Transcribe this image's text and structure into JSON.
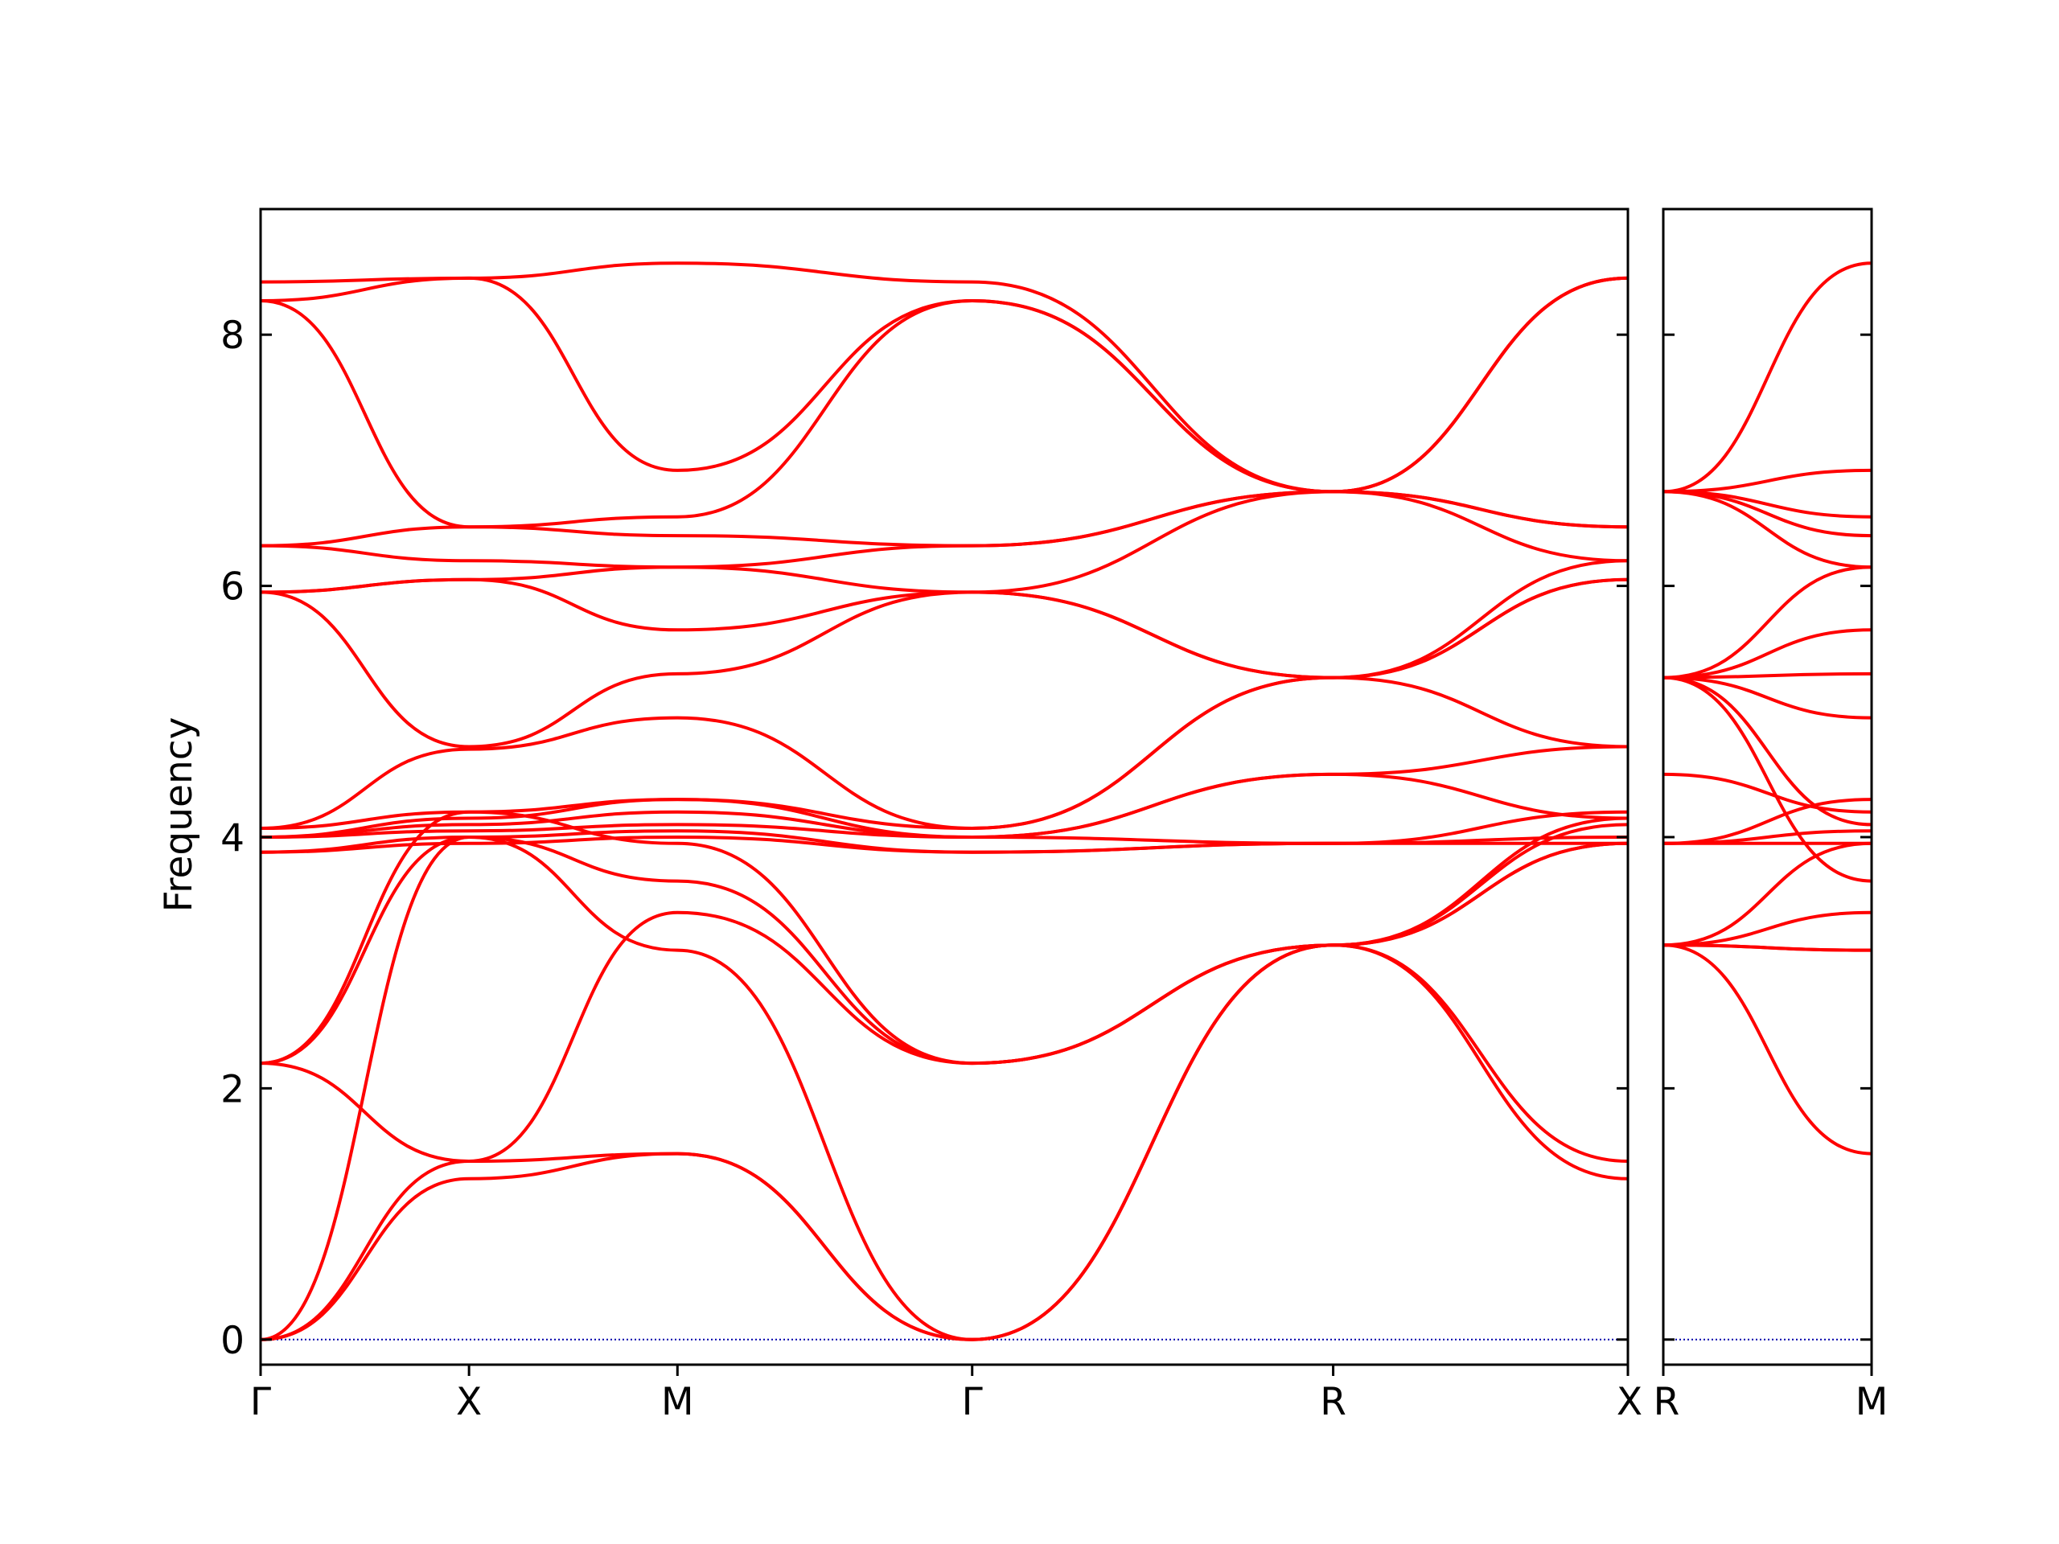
{
  "chart_data": {
    "type": "line",
    "ylabel": "Frequency",
    "ylim": [
      -0.2,
      9.0
    ],
    "yticks": [
      0,
      2,
      4,
      6,
      8
    ],
    "line_color": "#ff0000",
    "zero_line_color": "#0000aa",
    "panels": [
      {
        "segments": [
          {
            "from": "Γ",
            "to": "X",
            "length": 1.0
          },
          {
            "from": "X",
            "to": "M",
            "length": 1.0
          },
          {
            "from": "M",
            "to": "Γ",
            "length": 1.414
          },
          {
            "from": "Γ",
            "to": "R",
            "length": 1.732
          },
          {
            "from": "R",
            "to": "X",
            "length": 1.414
          }
        ],
        "xtick_labels": [
          "Γ",
          "X",
          "M",
          "Γ",
          "R",
          "X"
        ],
        "bands": [
          [
            [
              0,
              0
            ],
            [
              1,
              1.28
            ],
            [
              2,
              1.48
            ],
            [
              3.414,
              0
            ],
            [
              5.146,
              3.14
            ],
            [
              6.56,
              1.28
            ]
          ],
          [
            [
              0,
              0
            ],
            [
              1,
              1.42
            ],
            [
              2,
              1.48
            ],
            [
              3.414,
              0
            ],
            [
              5.146,
              3.14
            ],
            [
              6.56,
              1.42
            ]
          ],
          [
            [
              0,
              0
            ],
            [
              1,
              4.0
            ],
            [
              2,
              3.1
            ],
            [
              3.414,
              0
            ],
            [
              5.146,
              3.14
            ],
            [
              6.56,
              3.95
            ]
          ],
          [
            [
              0,
              2.2
            ],
            [
              1,
              1.42
            ],
            [
              2,
              3.4
            ],
            [
              3.414,
              2.2
            ],
            [
              5.146,
              3.14
            ],
            [
              6.56,
              3.95
            ]
          ],
          [
            [
              0,
              2.2
            ],
            [
              1,
              4.2
            ],
            [
              2,
              3.95
            ],
            [
              3.414,
              2.2
            ],
            [
              5.146,
              3.14
            ],
            [
              6.56,
              4.1
            ]
          ],
          [
            [
              0,
              2.2
            ],
            [
              1,
              4.0
            ],
            [
              2,
              3.65
            ],
            [
              3.414,
              2.2
            ],
            [
              5.146,
              3.14
            ],
            [
              6.56,
              4.15
            ]
          ],
          [
            [
              0,
              3.88
            ],
            [
              1,
              3.95
            ],
            [
              2,
              4.0
            ],
            [
              3.414,
              3.88
            ],
            [
              5.146,
              3.95
            ],
            [
              6.56,
              3.95
            ]
          ],
          [
            [
              0,
              3.88
            ],
            [
              1,
              4.0
            ],
            [
              2,
              4.05
            ],
            [
              3.414,
              3.88
            ],
            [
              5.146,
              3.95
            ],
            [
              6.56,
              4.0
            ]
          ],
          [
            [
              0,
              4.0
            ],
            [
              1,
              4.05
            ],
            [
              2,
              4.1
            ],
            [
              3.414,
              4.0
            ],
            [
              5.146,
              4.5
            ],
            [
              6.56,
              4.15
            ]
          ],
          [
            [
              0,
              4.0
            ],
            [
              1,
              4.1
            ],
            [
              2,
              4.2
            ],
            [
              3.414,
              4.0
            ],
            [
              5.146,
              3.95
            ],
            [
              6.56,
              4.2
            ]
          ],
          [
            [
              0,
              4.0
            ],
            [
              1,
              4.15
            ],
            [
              2,
              4.3
            ],
            [
              3.414,
              4.0
            ],
            [
              5.146,
              4.5
            ],
            [
              6.56,
              4.72
            ]
          ],
          [
            [
              0,
              4.07
            ],
            [
              1,
              4.2
            ],
            [
              2,
              4.3
            ],
            [
              3.414,
              4.07
            ],
            [
              5.146,
              5.27
            ],
            [
              6.56,
              4.72
            ]
          ],
          [
            [
              0,
              4.07
            ],
            [
              1,
              4.7
            ],
            [
              2,
              4.95
            ],
            [
              3.414,
              4.07
            ],
            [
              5.146,
              5.27
            ],
            [
              6.56,
              6.05
            ]
          ],
          [
            [
              0,
              5.95
            ],
            [
              1,
              4.72
            ],
            [
              2,
              5.3
            ],
            [
              3.414,
              5.95
            ],
            [
              5.146,
              5.27
            ],
            [
              6.56,
              6.05
            ]
          ],
          [
            [
              0,
              5.95
            ],
            [
              1,
              6.05
            ],
            [
              2,
              5.65
            ],
            [
              3.414,
              5.95
            ],
            [
              5.146,
              5.27
            ],
            [
              6.56,
              6.2
            ]
          ],
          [
            [
              0,
              5.95
            ],
            [
              1,
              6.05
            ],
            [
              2,
              6.15
            ],
            [
              3.414,
              5.95
            ],
            [
              5.146,
              6.75
            ],
            [
              6.56,
              6.2
            ]
          ],
          [
            [
              0,
              6.32
            ],
            [
              1,
              6.2
            ],
            [
              2,
              6.15
            ],
            [
              3.414,
              6.32
            ],
            [
              5.146,
              6.75
            ],
            [
              6.56,
              6.47
            ]
          ],
          [
            [
              0,
              6.32
            ],
            [
              1,
              6.47
            ],
            [
              2,
              6.4
            ],
            [
              3.414,
              6.32
            ],
            [
              5.146,
              6.75
            ],
            [
              6.56,
              6.47
            ]
          ],
          [
            [
              0,
              8.27
            ],
            [
              1,
              6.47
            ],
            [
              2,
              6.55
            ],
            [
              3.414,
              8.27
            ],
            [
              5.146,
              6.75
            ],
            [
              6.56,
              8.45
            ]
          ],
          [
            [
              0,
              8.27
            ],
            [
              1,
              8.45
            ],
            [
              2,
              6.92
            ],
            [
              3.414,
              8.27
            ],
            [
              5.146,
              6.75
            ],
            [
              6.56,
              8.45
            ]
          ],
          [
            [
              0,
              8.42
            ],
            [
              1,
              8.45
            ],
            [
              2,
              8.57
            ],
            [
              3.414,
              8.42
            ],
            [
              5.146,
              6.75
            ],
            [
              6.56,
              8.45
            ]
          ]
        ]
      },
      {
        "segments": [
          {
            "from": "R",
            "to": "M",
            "length": 1.0
          }
        ],
        "xtick_labels": [
          "R",
          "M"
        ],
        "bands": [
          [
            [
              0,
              3.14
            ],
            [
              1,
              1.48
            ]
          ],
          [
            [
              0,
              3.14
            ],
            [
              1,
              3.1
            ]
          ],
          [
            [
              0,
              3.14
            ],
            [
              1,
              3.1
            ]
          ],
          [
            [
              0,
              3.14
            ],
            [
              1,
              3.4
            ]
          ],
          [
            [
              0,
              3.14
            ],
            [
              1,
              3.95
            ]
          ],
          [
            [
              0,
              3.95
            ],
            [
              1,
              3.95
            ]
          ],
          [
            [
              0,
              3.95
            ],
            [
              1,
              4.05
            ]
          ],
          [
            [
              0,
              4.5
            ],
            [
              1,
              4.2
            ]
          ],
          [
            [
              0,
              3.95
            ],
            [
              1,
              4.3
            ]
          ],
          [
            [
              0,
              5.27
            ],
            [
              1,
              3.65
            ]
          ],
          [
            [
              0,
              5.27
            ],
            [
              1,
              4.1
            ]
          ],
          [
            [
              0,
              5.27
            ],
            [
              1,
              4.95
            ]
          ],
          [
            [
              0,
              5.27
            ],
            [
              1,
              5.3
            ]
          ],
          [
            [
              0,
              5.27
            ],
            [
              1,
              5.65
            ]
          ],
          [
            [
              0,
              5.27
            ],
            [
              1,
              6.15
            ]
          ],
          [
            [
              0,
              6.75
            ],
            [
              1,
              6.15
            ]
          ],
          [
            [
              0,
              6.75
            ],
            [
              1,
              6.4
            ]
          ],
          [
            [
              0,
              6.75
            ],
            [
              1,
              6.55
            ]
          ],
          [
            [
              0,
              6.75
            ],
            [
              1,
              6.92
            ]
          ],
          [
            [
              0,
              6.75
            ],
            [
              1,
              8.57
            ]
          ]
        ]
      }
    ]
  }
}
